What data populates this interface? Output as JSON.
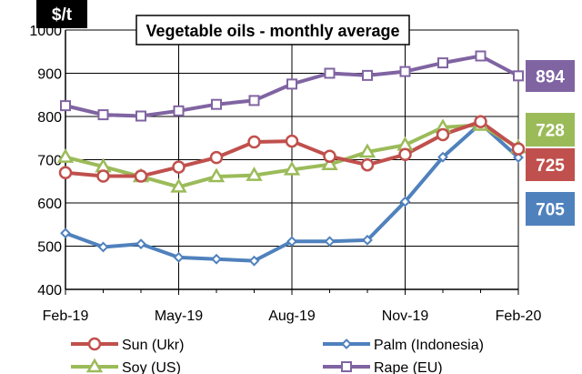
{
  "chart_data": {
    "type": "line",
    "title": "Vegetable oils - monthly average",
    "unit_label": "$/t",
    "ylim": [
      400,
      1000
    ],
    "yticks": [
      400,
      500,
      600,
      700,
      800,
      900,
      1000
    ],
    "x_tick_labels": [
      "Feb-19",
      "May-19",
      "Aug-19",
      "Nov-19",
      "Feb-20"
    ],
    "x_tick_index": [
      0,
      3,
      6,
      9,
      12
    ],
    "categories": [
      "Feb-19",
      "Mar-19",
      "Apr-19",
      "May-19",
      "Jun-19",
      "Jul-19",
      "Aug-19",
      "Sep-19",
      "Oct-19",
      "Nov-19",
      "Dec-19",
      "Jan-20",
      "Feb-20"
    ],
    "grid": true,
    "series": [
      {
        "name": "Sun (Ukr)",
        "color": "#c0504d",
        "marker": "circle",
        "values": [
          670,
          662,
          662,
          683,
          705,
          741,
          743,
          708,
          688,
          712,
          758,
          788,
          725
        ],
        "end_label": "725"
      },
      {
        "name": "Palm (Indonesia)",
        "color": "#4f81bd",
        "marker": "diamond",
        "values": [
          530,
          498,
          505,
          474,
          470,
          466,
          511,
          511,
          514,
          603,
          706,
          784,
          705
        ],
        "end_label": "705"
      },
      {
        "name": "Soy (US)",
        "color": "#9bbb59",
        "marker": "triangle",
        "values": [
          706,
          684,
          661,
          637,
          661,
          664,
          677,
          689,
          718,
          734,
          775,
          780,
          728
        ],
        "end_label": "728"
      },
      {
        "name": "Rape (EU)",
        "color": "#8064a2",
        "marker": "square",
        "values": [
          825,
          804,
          801,
          813,
          828,
          837,
          875,
          900,
          895,
          904,
          924,
          940,
          894
        ],
        "end_label": "894"
      }
    ]
  }
}
